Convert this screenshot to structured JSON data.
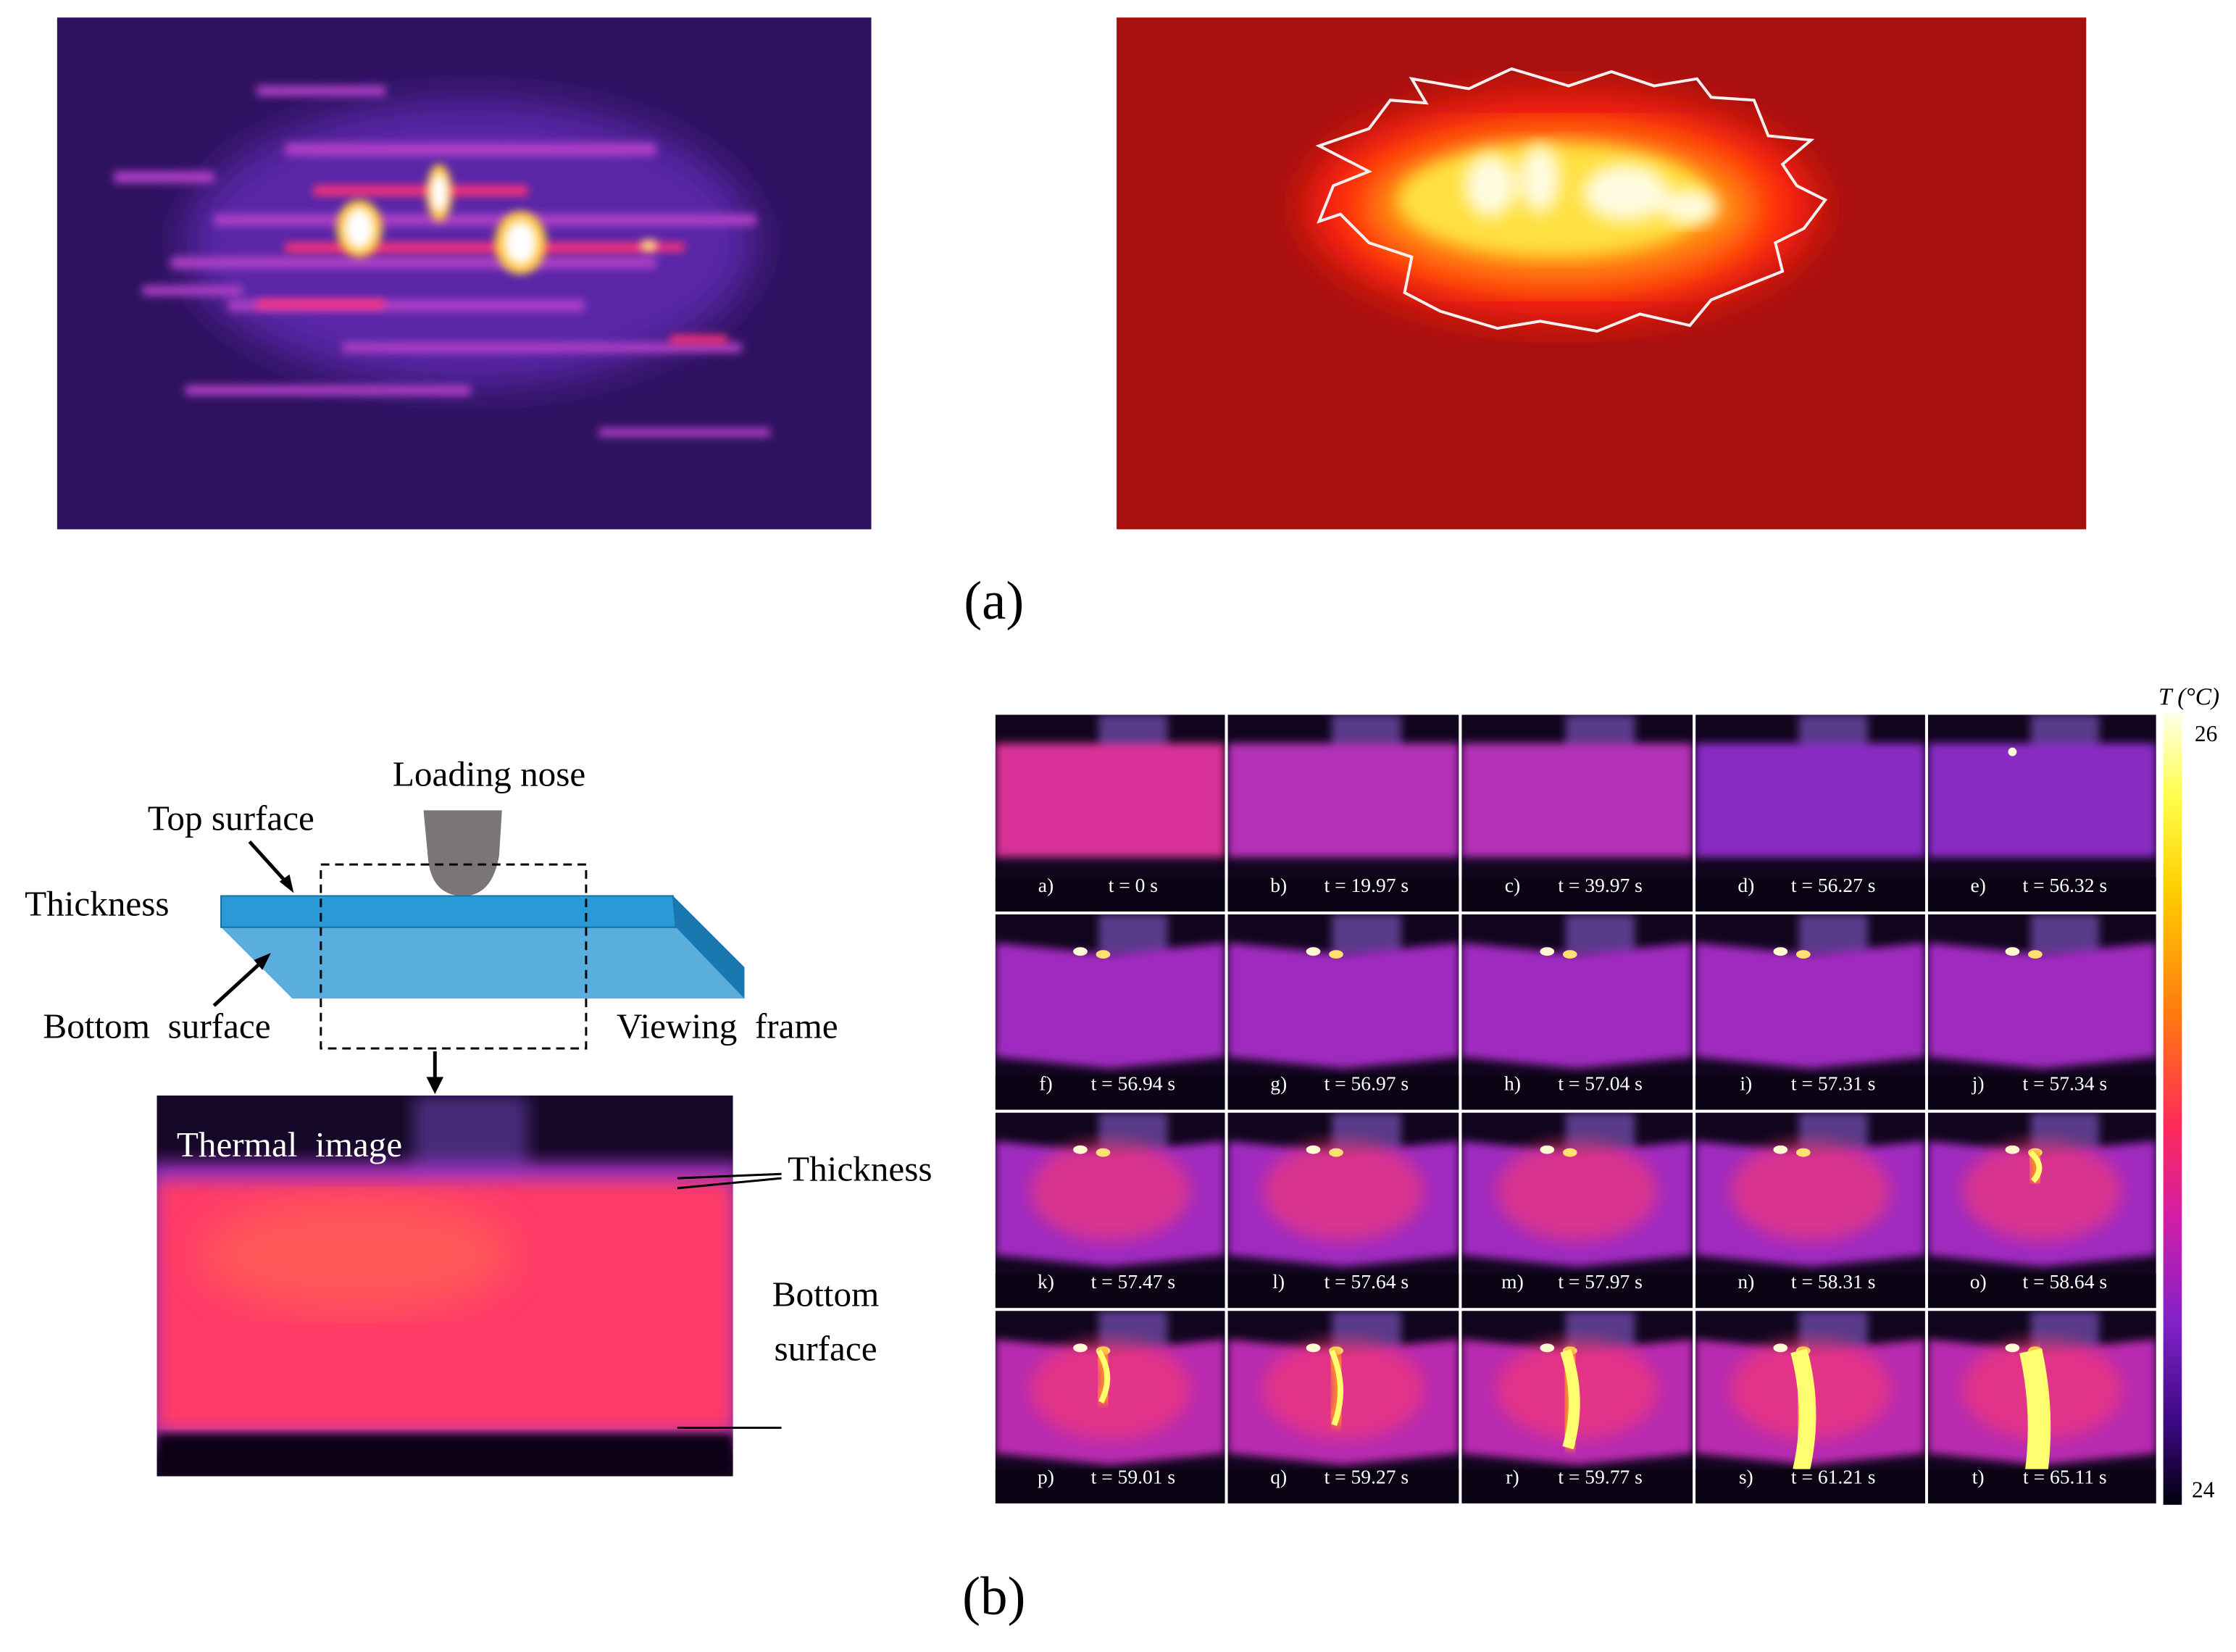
{
  "panel_a": {
    "label": "(a)"
  },
  "panel_b": {
    "label": "(b)",
    "schematic": {
      "loading_nose": "Loading nose",
      "top_surface": "Top surface",
      "thickness": "Thickness",
      "bottom_surface": "Bottom  surface",
      "viewing_frame": "Viewing  frame",
      "thermal_image": "Thermal  image",
      "thickness_right": "Thickness",
      "bottom_surface_right": [
        "Bottom",
        "surface"
      ]
    },
    "frames": [
      {
        "label": "a)",
        "time": "t = 0 s"
      },
      {
        "label": "b)",
        "time": "t = 19.97 s"
      },
      {
        "label": "c)",
        "time": "t = 39.97 s"
      },
      {
        "label": "d)",
        "time": "t = 56.27 s"
      },
      {
        "label": "e)",
        "time": "t = 56.32 s"
      },
      {
        "label": "f)",
        "time": "t = 56.94 s"
      },
      {
        "label": "g)",
        "time": "t = 56.97 s"
      },
      {
        "label": "h)",
        "time": "t = 57.04 s"
      },
      {
        "label": "i)",
        "time": "t = 57.31 s"
      },
      {
        "label": "j)",
        "time": "t = 57.34 s"
      },
      {
        "label": "k)",
        "time": "t = 57.47 s"
      },
      {
        "label": "l)",
        "time": "t = 57.64 s"
      },
      {
        "label": "m)",
        "time": "t = 57.97 s"
      },
      {
        "label": "n)",
        "time": "t = 58.31 s"
      },
      {
        "label": "o)",
        "time": "t = 58.64 s"
      },
      {
        "label": "p)",
        "time": "t = 59.01 s"
      },
      {
        "label": "q)",
        "time": "t = 59.27 s"
      },
      {
        "label": "r)",
        "time": "t = 59.77 s"
      },
      {
        "label": "s)",
        "time": "t = 61.21 s"
      },
      {
        "label": "t)",
        "time": "t = 65.11 s"
      }
    ],
    "colorbar": {
      "title": "T (°C)",
      "max": 26,
      "min": 24
    }
  }
}
